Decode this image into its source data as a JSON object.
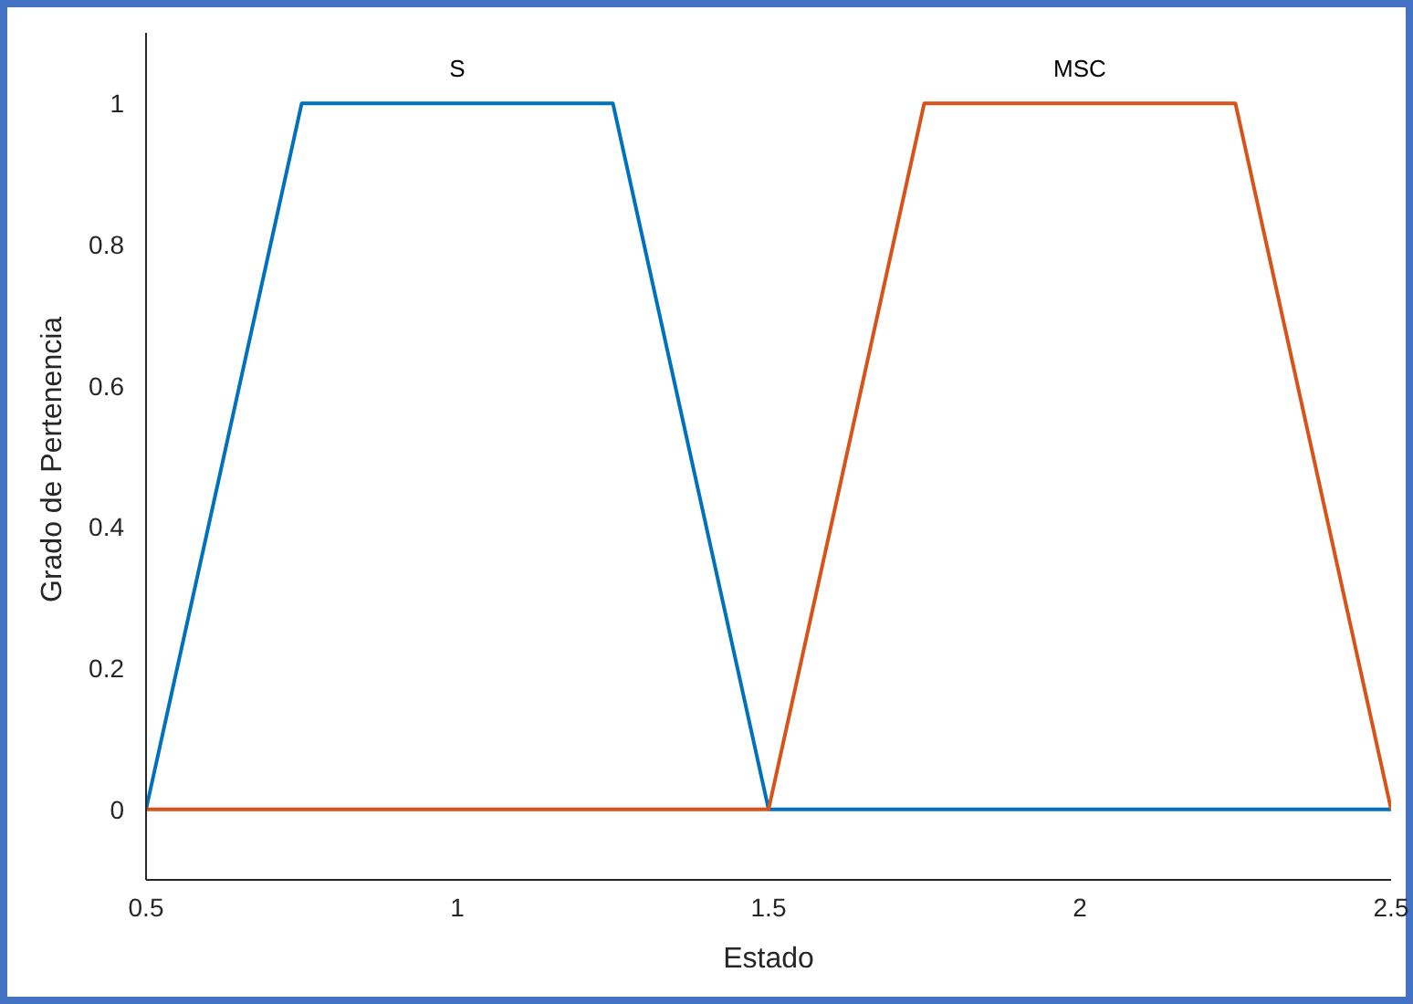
{
  "chart_data": {
    "type": "line",
    "xlabel": "Estado",
    "ylabel": "Grado de Pertenencia",
    "series": [
      {
        "color": "#0072bd",
        "x": [
          0.5,
          0.75,
          1.25,
          1.5,
          2.5
        ],
        "values": [
          0,
          1,
          1,
          0,
          0
        ]
      },
      {
        "color": "#d95319",
        "x": [
          0.5,
          1.5,
          1.75,
          2.25,
          2.5
        ],
        "values": [
          0,
          0,
          1,
          1,
          0
        ]
      }
    ],
    "xlim": [
      0.5,
      2.5
    ],
    "xticks": [
      0.5,
      1,
      1.5,
      2,
      2.5
    ],
    "ylim": [
      -0.1,
      1.1
    ],
    "yticks": [
      0,
      0.2,
      0.4,
      0.6,
      0.8,
      1
    ],
    "annotations": [
      "S",
      "MSC"
    ],
    "grid": false,
    "legend": false,
    "marker": "none",
    "line_style": "solid"
  }
}
